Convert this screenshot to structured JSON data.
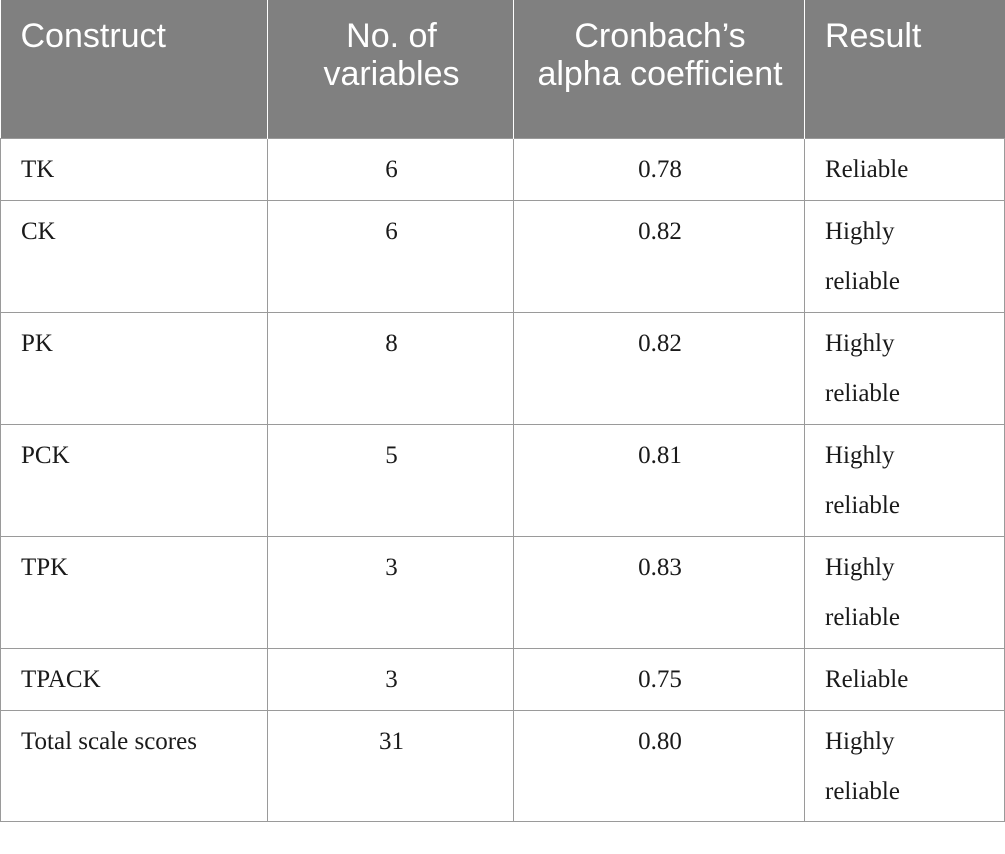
{
  "table": {
    "headers": {
      "construct": "Construct",
      "variables": "No. of variables",
      "alpha": "Cronbach’s alpha coefficient",
      "result": "Result"
    },
    "rows": [
      {
        "construct": "TK",
        "variables": "6",
        "alpha": "0.78",
        "result": "Reliable"
      },
      {
        "construct": "CK",
        "variables": "6",
        "alpha": "0.82",
        "result": "Highly reliable"
      },
      {
        "construct": "PK",
        "variables": "8",
        "alpha": "0.82",
        "result": "Highly reliable"
      },
      {
        "construct": "PCK",
        "variables": "5",
        "alpha": "0.81",
        "result": "Highly reliable"
      },
      {
        "construct": "TPK",
        "variables": "3",
        "alpha": "0.83",
        "result": "Highly reliable"
      },
      {
        "construct": "TPACK",
        "variables": "3",
        "alpha": "0.75",
        "result": "Reliable"
      },
      {
        "construct": "Total scale scores",
        "variables": "31",
        "alpha": "0.80",
        "result": "Highly reliable"
      }
    ]
  }
}
